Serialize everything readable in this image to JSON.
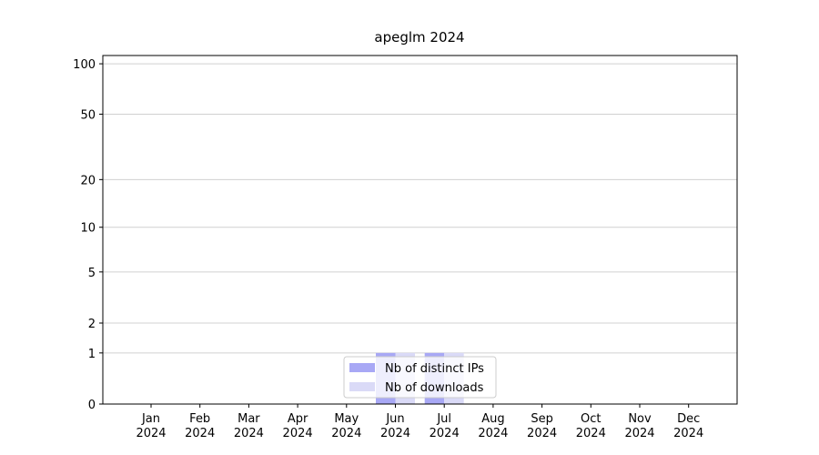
{
  "chart_data": {
    "type": "bar",
    "title": "apeglm 2024",
    "categories": [
      "Jan\n2024",
      "Feb\n2024",
      "Mar\n2024",
      "Apr\n2024",
      "May\n2024",
      "Jun\n2024",
      "Jul\n2024",
      "Aug\n2024",
      "Sep\n2024",
      "Oct\n2024",
      "Nov\n2024",
      "Dec\n2024"
    ],
    "series": [
      {
        "name": "Nb of distinct IPs",
        "color": "#a8a8f5",
        "values": [
          0,
          0,
          0,
          0,
          0,
          1,
          1,
          0,
          0,
          0,
          0,
          0
        ]
      },
      {
        "name": "Nb of downloads",
        "color": "#dadaf7",
        "values": [
          0,
          0,
          0,
          0,
          0,
          1,
          1,
          0,
          0,
          0,
          0,
          0
        ]
      }
    ],
    "yscale": "symlog",
    "ylim": [
      0,
      112
    ],
    "yticks": [
      0,
      1,
      2,
      5,
      10,
      20,
      50,
      100
    ],
    "grid": true,
    "legend": "lower center"
  }
}
